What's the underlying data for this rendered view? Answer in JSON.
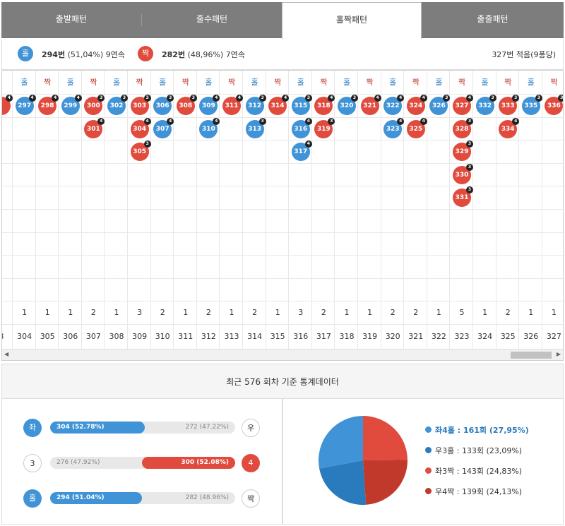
{
  "tabs": [
    "출발패턴",
    "줄수패턴",
    "홀짝패턴",
    "출줄패턴"
  ],
  "active_tab": 2,
  "summary": {
    "odd_label": "홀",
    "odd_count": "294번",
    "odd_detail": "(51,04%) 9연속",
    "even_label": "짝",
    "even_count": "282번",
    "even_detail": "(48,96%) 7연속",
    "right_text": "327번 적음(9퐁당)"
  },
  "columns": [
    {
      "head": "",
      "balls": [
        {
          "n": "",
          "c": "red",
          "t": "4"
        }
      ],
      "count": "",
      "round": "3"
    },
    {
      "head": "홀",
      "balls": [
        {
          "n": "297",
          "c": "blue",
          "t": "4"
        }
      ],
      "count": "1",
      "round": "304"
    },
    {
      "head": "짝",
      "balls": [
        {
          "n": "298",
          "c": "red",
          "t": "4"
        }
      ],
      "count": "1",
      "round": "305"
    },
    {
      "head": "홀",
      "balls": [
        {
          "n": "299",
          "c": "blue",
          "t": "4"
        }
      ],
      "count": "1",
      "round": "306"
    },
    {
      "head": "짝",
      "balls": [
        {
          "n": "300",
          "c": "red",
          "t": "3"
        },
        {
          "n": "301",
          "c": "red",
          "t": "4"
        }
      ],
      "count": "2",
      "round": "307"
    },
    {
      "head": "홀",
      "balls": [
        {
          "n": "302",
          "c": "blue",
          "t": "3"
        }
      ],
      "count": "1",
      "round": "308"
    },
    {
      "head": "짝",
      "balls": [
        {
          "n": "303",
          "c": "red",
          "t": "3"
        },
        {
          "n": "304",
          "c": "red",
          "t": "4"
        },
        {
          "n": "305",
          "c": "red",
          "t": "3"
        }
      ],
      "count": "3",
      "round": "309"
    },
    {
      "head": "홀",
      "balls": [
        {
          "n": "306",
          "c": "blue",
          "t": "3"
        },
        {
          "n": "307",
          "c": "blue",
          "t": "4"
        }
      ],
      "count": "2",
      "round": "310"
    },
    {
      "head": "짝",
      "balls": [
        {
          "n": "308",
          "c": "red",
          "t": "3"
        }
      ],
      "count": "1",
      "round": "311"
    },
    {
      "head": "홀",
      "balls": [
        {
          "n": "309",
          "c": "blue",
          "t": "4"
        },
        {
          "n": "310",
          "c": "blue",
          "t": "4"
        }
      ],
      "count": "2",
      "round": "312"
    },
    {
      "head": "짝",
      "balls": [
        {
          "n": "311",
          "c": "red",
          "t": "4"
        }
      ],
      "count": "1",
      "round": "313"
    },
    {
      "head": "홀",
      "balls": [
        {
          "n": "312",
          "c": "blue",
          "t": "3"
        },
        {
          "n": "313",
          "c": "blue",
          "t": "3"
        }
      ],
      "count": "2",
      "round": "314"
    },
    {
      "head": "짝",
      "balls": [
        {
          "n": "314",
          "c": "red",
          "t": "4"
        }
      ],
      "count": "1",
      "round": "315"
    },
    {
      "head": "홀",
      "balls": [
        {
          "n": "315",
          "c": "blue",
          "t": "3"
        },
        {
          "n": "316",
          "c": "blue",
          "t": "4"
        },
        {
          "n": "317",
          "c": "blue",
          "t": "4"
        }
      ],
      "count": "3",
      "round": "316"
    },
    {
      "head": "짝",
      "balls": [
        {
          "n": "318",
          "c": "red",
          "t": "4"
        },
        {
          "n": "319",
          "c": "red",
          "t": "3"
        }
      ],
      "count": "2",
      "round": "317"
    },
    {
      "head": "홀",
      "balls": [
        {
          "n": "320",
          "c": "blue",
          "t": "3"
        }
      ],
      "count": "1",
      "round": "318"
    },
    {
      "head": "짝",
      "balls": [
        {
          "n": "321",
          "c": "red",
          "t": "4"
        }
      ],
      "count": "1",
      "round": "319"
    },
    {
      "head": "홀",
      "balls": [
        {
          "n": "322",
          "c": "blue",
          "t": "4"
        },
        {
          "n": "323",
          "c": "blue",
          "t": "4"
        }
      ],
      "count": "2",
      "round": "320"
    },
    {
      "head": "짝",
      "balls": [
        {
          "n": "324",
          "c": "red",
          "t": "4"
        },
        {
          "n": "325",
          "c": "red",
          "t": "4"
        }
      ],
      "count": "2",
      "round": "321"
    },
    {
      "head": "홀",
      "balls": [
        {
          "n": "326",
          "c": "blue",
          "t": "3"
        }
      ],
      "count": "1",
      "round": "322"
    },
    {
      "head": "짝",
      "balls": [
        {
          "n": "327",
          "c": "red",
          "t": "4"
        },
        {
          "n": "328",
          "c": "red",
          "t": "3"
        },
        {
          "n": "329",
          "c": "red",
          "t": "3"
        },
        {
          "n": "330",
          "c": "red",
          "t": "3"
        },
        {
          "n": "331",
          "c": "red",
          "t": "3"
        }
      ],
      "count": "5",
      "round": "323"
    },
    {
      "head": "홀",
      "balls": [
        {
          "n": "332",
          "c": "blue",
          "t": "3"
        }
      ],
      "count": "1",
      "round": "324"
    },
    {
      "head": "짝",
      "balls": [
        {
          "n": "333",
          "c": "red",
          "t": "3"
        },
        {
          "n": "334",
          "c": "red",
          "t": "4"
        }
      ],
      "count": "2",
      "round": "325"
    },
    {
      "head": "홀",
      "balls": [
        {
          "n": "335",
          "c": "blue",
          "t": "3"
        }
      ],
      "count": "1",
      "round": "326"
    },
    {
      "head": "짝",
      "balls": [
        {
          "n": "336",
          "c": "red",
          "t": "3"
        }
      ],
      "count": "1",
      "round": "327"
    }
  ],
  "stats_title": "최근 576 회차 기준 통계데이터",
  "bars": [
    {
      "left_label": "좌",
      "left_style": "blue",
      "left_text": "304 (52.78%)",
      "right_text": "272 (47.22%)",
      "right_label": "우",
      "right_style": "outline",
      "fill_side": "left",
      "fill_pct": 52.78,
      "fill_color": "blue"
    },
    {
      "left_label": "3",
      "left_style": "outline",
      "left_text": "276 (47.92%)",
      "right_text": "300 (52.08%)",
      "right_label": "4",
      "right_style": "red",
      "fill_side": "right",
      "fill_pct": 52.08,
      "fill_color": "red"
    },
    {
      "left_label": "홀",
      "left_style": "blue",
      "left_text": "294 (51.04%)",
      "right_text": "282 (48.96%)",
      "right_label": "짝",
      "right_style": "outline",
      "fill_side": "left",
      "fill_pct": 51.04,
      "fill_color": "blue"
    }
  ],
  "chart_data": {
    "type": "pie",
    "slices": [
      {
        "label": "좌4홀 : 161회 (27,95%)",
        "value": 161,
        "color": "#3f93d6"
      },
      {
        "label": "우3홀 : 133회 (23,09%)",
        "value": 133,
        "color": "#2a7bbd"
      },
      {
        "label": "좌3짝 : 143회 (24,83%)",
        "value": 143,
        "color": "#e04b3e"
      },
      {
        "label": "우4짝 : 139회 (24,13%)",
        "value": 139,
        "color": "#c0392b"
      }
    ]
  },
  "colors": {
    "blue": "#3f93d6",
    "red": "#e04b3e"
  }
}
